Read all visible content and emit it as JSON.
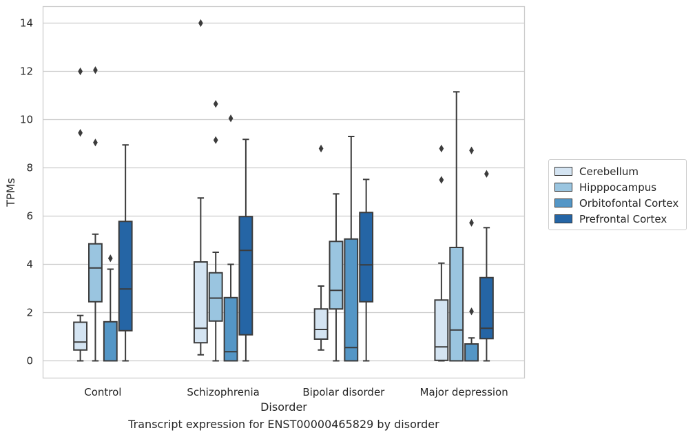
{
  "chart_data": {
    "type": "box",
    "title": "Transcript expression for ENST00000465829 by disorder",
    "xlabel": "Disorder",
    "ylabel": "TPMs",
    "ylim": [
      -0.7,
      14.7
    ],
    "yticks": [
      0,
      2,
      4,
      6,
      8,
      10,
      12,
      14
    ],
    "grid": true,
    "legend_position": "right",
    "categories": [
      "Control",
      "Schizophrenia",
      "Bipolar disorder",
      "Major depression"
    ],
    "series": [
      {
        "name": "Cerebellum",
        "color": "#d4e4f2",
        "boxes": [
          {
            "q1": 0.45,
            "median": 0.78,
            "q3": 1.6,
            "whisker_low": 0.0,
            "whisker_high": 1.88,
            "outliers": [
              9.45,
              12.0
            ]
          },
          {
            "q1": 0.75,
            "median": 1.35,
            "q3": 4.1,
            "whisker_low": 0.25,
            "whisker_high": 6.75,
            "outliers": [
              14.0
            ]
          },
          {
            "q1": 0.9,
            "median": 1.3,
            "q3": 2.15,
            "whisker_low": 0.45,
            "whisker_high": 3.1,
            "outliers": [
              8.8
            ]
          },
          {
            "q1": 0.02,
            "median": 0.58,
            "q3": 2.52,
            "whisker_low": 0.0,
            "whisker_high": 4.05,
            "outliers": [
              7.5,
              8.8
            ]
          }
        ]
      },
      {
        "name": "Hipppocampus",
        "color": "#9ac5e0",
        "boxes": [
          {
            "q1": 2.45,
            "median": 3.85,
            "q3": 4.85,
            "whisker_low": 0.0,
            "whisker_high": 5.25,
            "outliers": [
              9.05,
              12.05
            ]
          },
          {
            "q1": 1.65,
            "median": 2.6,
            "q3": 3.65,
            "whisker_low": 0.0,
            "whisker_high": 4.5,
            "outliers": [
              9.15,
              10.65
            ]
          },
          {
            "q1": 2.15,
            "median": 2.92,
            "q3": 4.95,
            "whisker_low": 0.0,
            "whisker_high": 6.92,
            "outliers": []
          },
          {
            "q1": 0.0,
            "median": 1.28,
            "q3": 4.7,
            "whisker_low": 0.0,
            "whisker_high": 11.15,
            "outliers": []
          }
        ]
      },
      {
        "name": "Orbitofontal Cortex",
        "color": "#5496c6",
        "boxes": [
          {
            "q1": 0.0,
            "median": 0.0,
            "q3": 1.62,
            "whisker_low": 0.0,
            "whisker_high": 3.8,
            "outliers": [
              4.25
            ]
          },
          {
            "q1": 0.0,
            "median": 0.38,
            "q3": 2.62,
            "whisker_low": 0.0,
            "whisker_high": 4.0,
            "outliers": [
              10.05
            ]
          },
          {
            "q1": 0.0,
            "median": 0.55,
            "q3": 5.05,
            "whisker_low": 0.0,
            "whisker_high": 9.3,
            "outliers": []
          },
          {
            "q1": 0.0,
            "median": 0.0,
            "q3": 0.7,
            "whisker_low": 0.0,
            "whisker_high": 0.95,
            "outliers": [
              2.05,
              5.72,
              8.72
            ]
          }
        ]
      },
      {
        "name": "Prefrontal Cortex",
        "color": "#2565a5",
        "boxes": [
          {
            "q1": 1.25,
            "median": 2.98,
            "q3": 5.78,
            "whisker_low": 0.0,
            "whisker_high": 8.95,
            "outliers": []
          },
          {
            "q1": 1.08,
            "median": 4.58,
            "q3": 5.98,
            "whisker_low": 0.0,
            "whisker_high": 9.18,
            "outliers": []
          },
          {
            "q1": 2.45,
            "median": 3.98,
            "q3": 6.15,
            "whisker_low": 0.0,
            "whisker_high": 7.52,
            "outliers": []
          },
          {
            "q1": 0.92,
            "median": 1.35,
            "q3": 3.45,
            "whisker_low": 0.0,
            "whisker_high": 5.52,
            "outliers": [
              7.75
            ]
          }
        ]
      }
    ]
  }
}
